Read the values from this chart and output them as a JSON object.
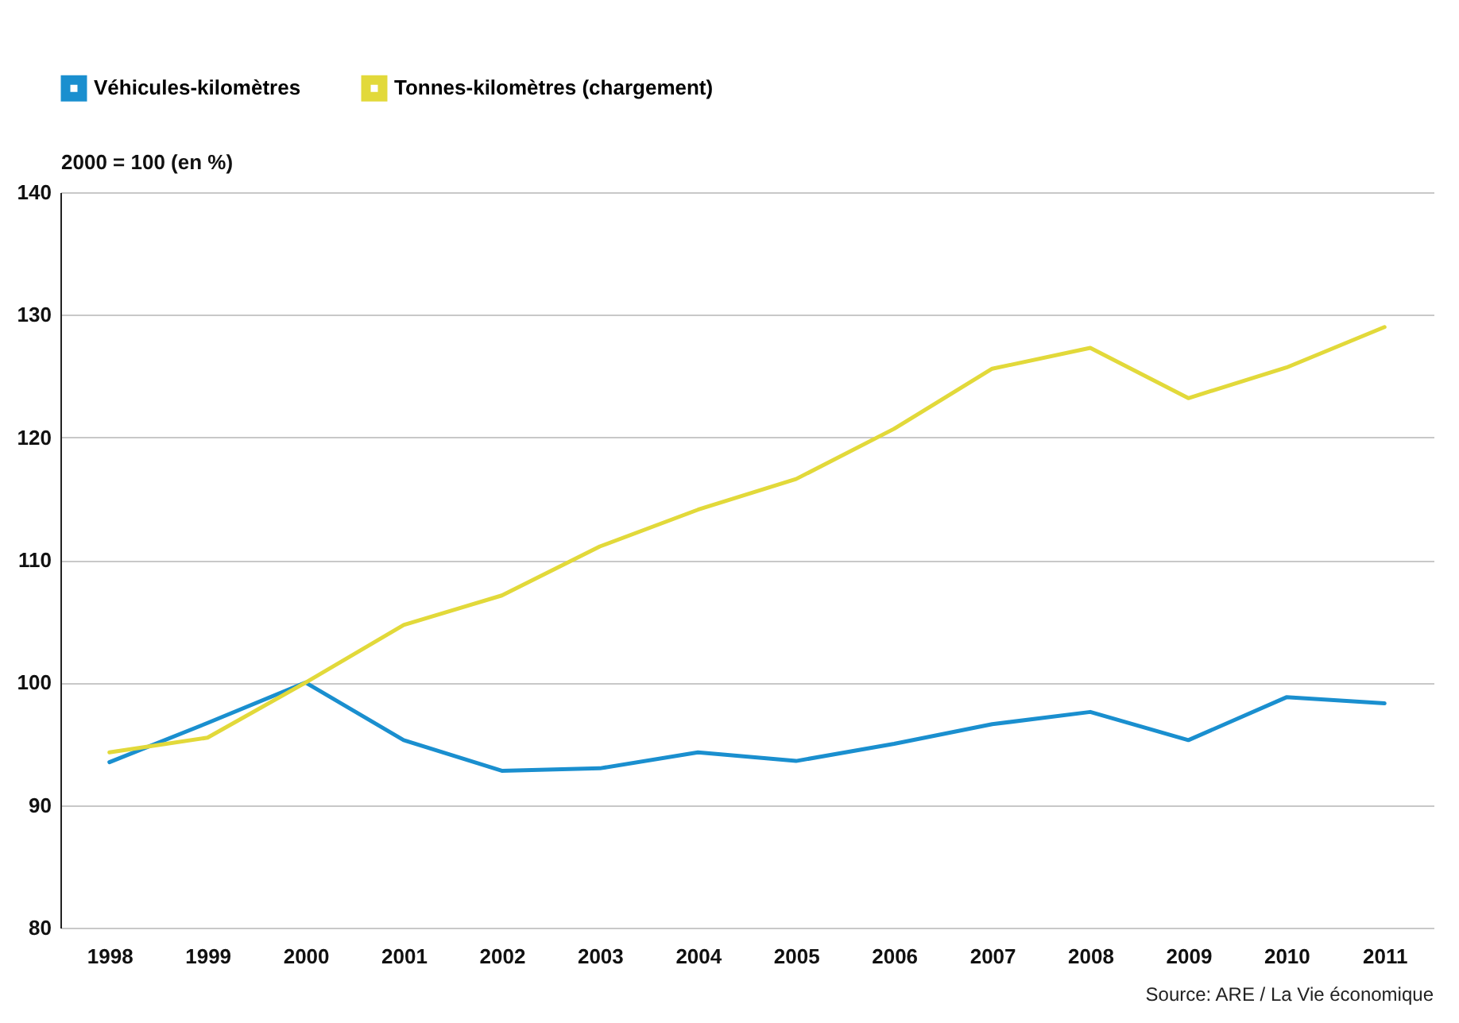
{
  "chart_data": {
    "type": "line",
    "ylabel": "2000 = 100 (en %)",
    "categories": [
      "1998",
      "1999",
      "2000",
      "2001",
      "2002",
      "2003",
      "2004",
      "2005",
      "2006",
      "2007",
      "2008",
      "2009",
      "2010",
      "2011"
    ],
    "series": [
      {
        "name": "Véhicules-kilomètres",
        "color": "#1a8fcf",
        "values": [
          93.5,
          96.7,
          100,
          95.3,
          92.8,
          93.0,
          94.3,
          93.6,
          95.0,
          96.6,
          97.6,
          95.3,
          98.8,
          98.3
        ]
      },
      {
        "name": "Tonnes-kilomètres (chargement)",
        "color": "#e2d93a",
        "values": [
          94.3,
          95.5,
          100,
          104.7,
          107.1,
          111.1,
          114.1,
          116.6,
          120.7,
          125.6,
          127.3,
          123.2,
          125.7,
          129.0
        ]
      }
    ],
    "ylim": [
      80,
      140
    ],
    "yticks": [
      80,
      90,
      100,
      110,
      120,
      130,
      140
    ],
    "grid": "y",
    "legend": "top left",
    "marker": "none",
    "line_style": "solid",
    "annotations": [
      "Source: ARE / La Vie économique"
    ]
  }
}
